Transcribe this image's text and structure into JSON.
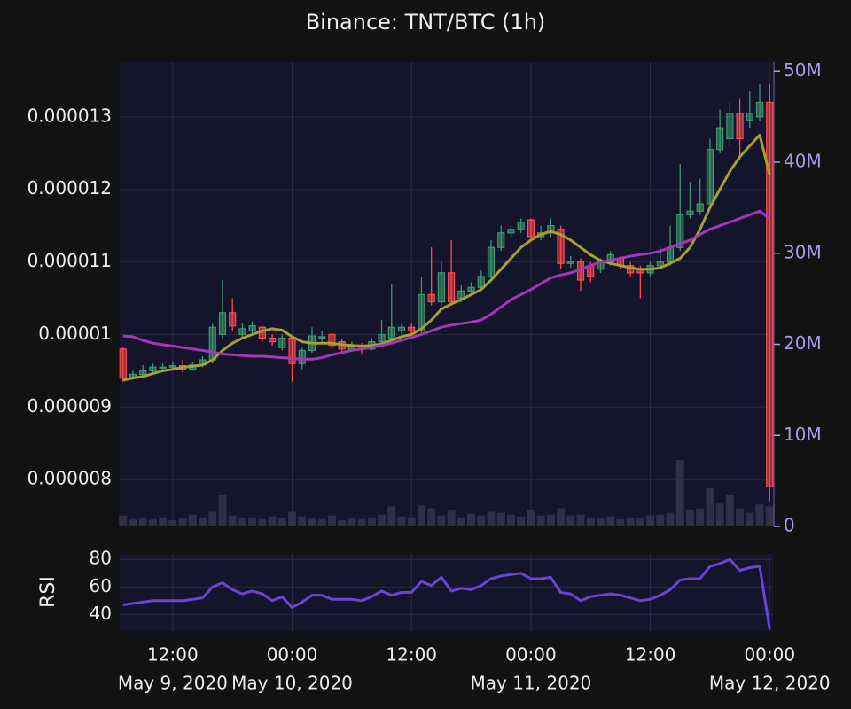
{
  "chart_data": [
    {
      "type": "candlestick",
      "title": "Binance: TNT/BTC (1h)",
      "x": [
        "2020-05-09 07:00",
        "2020-05-09 08:00",
        "2020-05-09 09:00",
        "2020-05-09 10:00",
        "2020-05-09 11:00",
        "2020-05-09 12:00",
        "2020-05-09 13:00",
        "2020-05-09 14:00",
        "2020-05-09 15:00",
        "2020-05-09 16:00",
        "2020-05-09 17:00",
        "2020-05-09 18:00",
        "2020-05-09 19:00",
        "2020-05-09 20:00",
        "2020-05-09 21:00",
        "2020-05-09 22:00",
        "2020-05-09 23:00",
        "2020-05-10 00:00",
        "2020-05-10 01:00",
        "2020-05-10 02:00",
        "2020-05-10 03:00",
        "2020-05-10 04:00",
        "2020-05-10 05:00",
        "2020-05-10 06:00",
        "2020-05-10 07:00",
        "2020-05-10 08:00",
        "2020-05-10 09:00",
        "2020-05-10 10:00",
        "2020-05-10 11:00",
        "2020-05-10 12:00",
        "2020-05-10 13:00",
        "2020-05-10 14:00",
        "2020-05-10 15:00",
        "2020-05-10 16:00",
        "2020-05-10 17:00",
        "2020-05-10 18:00",
        "2020-05-10 19:00",
        "2020-05-10 20:00",
        "2020-05-10 21:00",
        "2020-05-10 22:00",
        "2020-05-10 23:00",
        "2020-05-11 00:00",
        "2020-05-11 01:00",
        "2020-05-11 02:00",
        "2020-05-11 03:00",
        "2020-05-11 04:00",
        "2020-05-11 05:00",
        "2020-05-11 06:00",
        "2020-05-11 07:00",
        "2020-05-11 08:00",
        "2020-05-11 09:00",
        "2020-05-11 10:00",
        "2020-05-11 11:00",
        "2020-05-11 12:00",
        "2020-05-11 13:00",
        "2020-05-11 14:00",
        "2020-05-11 15:00",
        "2020-05-11 16:00",
        "2020-05-11 17:00",
        "2020-05-11 18:00",
        "2020-05-11 19:00",
        "2020-05-11 20:00",
        "2020-05-11 21:00",
        "2020-05-11 22:00",
        "2020-05-11 23:00",
        "2020-05-12 00:00"
      ],
      "open": [
        9.8e-06,
        9.4e-06,
        9.45e-06,
        9.5e-06,
        9.55e-06,
        9.55e-06,
        9.57e-06,
        9.52e-06,
        9.58e-06,
        9.65e-06,
        1e-05,
        1.03e-05,
        1e-05,
        1.005e-05,
        1.01e-05,
        9.95e-06,
        9.82e-06,
        9.95e-06,
        9.6e-06,
        9.78e-06,
        9.95e-06,
        1e-05,
        9.9e-06,
        9.8e-06,
        9.85e-06,
        9.8e-06,
        9.9e-06,
        9.95e-06,
        1.005e-05,
        1.01e-05,
        1.005e-05,
        1.055e-05,
        1.045e-05,
        1.085e-05,
        1.05e-05,
        1.06e-05,
        1.065e-05,
        1.08e-05,
        1.12e-05,
        1.14e-05,
        1.145e-05,
        1.158e-05,
        1.135e-05,
        1.14e-05,
        1.145e-05,
        1.098e-05,
        1.1e-05,
        1.095e-05,
        1.09e-05,
        1.1e-05,
        1.105e-05,
        1.095e-05,
        1.09e-05,
        1.085e-05,
        1.095e-05,
        1.1e-05,
        1.12e-05,
        1.165e-05,
        1.17e-05,
        1.18e-05,
        1.255e-05,
        1.27e-05,
        1.305e-05,
        1.295e-05,
        1.3e-05,
        1.32e-05
      ],
      "high": [
        9.82e-06,
        9.5e-06,
        9.58e-06,
        9.6e-06,
        9.6e-06,
        9.62e-06,
        9.65e-06,
        9.62e-06,
        9.7e-06,
        1.015e-05,
        1.075e-05,
        1.05e-05,
        1.015e-05,
        1.018e-05,
        1.012e-05,
        1e-05,
        1e-05,
        9.98e-06,
        9.82e-06,
        1.01e-05,
        1.005e-05,
        1.002e-05,
        9.93e-06,
        9.9e-06,
        9.88e-06,
        9.95e-06,
        1.02e-05,
        1.07e-05,
        1.015e-05,
        1.015e-05,
        1.08e-05,
        1.12e-05,
        1.1e-05,
        1.13e-05,
        1.068e-05,
        1.072e-05,
        1.088e-05,
        1.13e-05,
        1.15e-05,
        1.15e-05,
        1.16e-05,
        1.16e-05,
        1.15e-05,
        1.16e-05,
        1.15e-05,
        1.108e-05,
        1.105e-05,
        1.1e-05,
        1.105e-05,
        1.115e-05,
        1.108e-05,
        1.1e-05,
        1.095e-05,
        1.1e-05,
        1.12e-05,
        1.15e-05,
        1.235e-05,
        1.21e-05,
        1.215e-05,
        1.27e-05,
        1.31e-05,
        1.32e-05,
        1.325e-05,
        1.335e-05,
        1.345e-05,
        1.345e-05
      ],
      "low": [
        9.35e-06,
        9.38e-06,
        9.42e-06,
        9.47e-06,
        9.5e-06,
        9.5e-06,
        9.48e-06,
        9.5e-06,
        9.55e-06,
        9.6e-06,
        9.95e-06,
        1.005e-05,
        9.95e-06,
        1e-05,
        9.9e-06,
        9.85e-06,
        9.78e-06,
        9.35e-06,
        9.52e-06,
        9.75e-06,
        9.9e-06,
        9.8e-06,
        9.76e-06,
        9.77e-06,
        9.72e-06,
        9.78e-06,
        9.88e-06,
        9.92e-06,
        1e-05,
        1e-05,
        1.002e-05,
        1.04e-05,
        1.04e-05,
        1.04e-05,
        1.045e-05,
        1.055e-05,
        1.06e-05,
        1.075e-05,
        1.115e-05,
        1.135e-05,
        1.14e-05,
        1.13e-05,
        1.13e-05,
        1.135e-05,
        1.09e-05,
        1.092e-05,
        1.06e-05,
        1.072e-05,
        1.085e-05,
        1.095e-05,
        1.09e-05,
        1.08e-05,
        1.05e-05,
        1.08e-05,
        1.09e-05,
        1.095e-05,
        1.115e-05,
        1.16e-05,
        1.165e-05,
        1.175e-05,
        1.25e-05,
        1.26e-05,
        1.24e-05,
        1.285e-05,
        1.295e-05,
        7.7e-06
      ],
      "close": [
        9.4e-06,
        9.45e-06,
        9.5e-06,
        9.55e-06,
        9.55e-06,
        9.57e-06,
        9.52e-06,
        9.58e-06,
        9.65e-06,
        1.01e-05,
        1.03e-05,
        1.012e-05,
        1.008e-05,
        1.012e-05,
        9.95e-06,
        9.9e-06,
        9.95e-06,
        9.6e-06,
        9.78e-06,
        9.98e-06,
        9.97e-06,
        9.85e-06,
        9.8e-06,
        9.85e-06,
        9.8e-06,
        9.9e-06,
        1e-05,
        1.01e-05,
        1.01e-05,
        1.005e-05,
        1.055e-05,
        1.045e-05,
        1.085e-05,
        1.045e-05,
        1.06e-05,
        1.065e-05,
        1.08e-05,
        1.12e-05,
        1.14e-05,
        1.145e-05,
        1.155e-05,
        1.135e-05,
        1.14e-05,
        1.15e-05,
        1.098e-05,
        1.1e-05,
        1.075e-05,
        1.08e-05,
        1.1e-05,
        1.11e-05,
        1.095e-05,
        1.085e-05,
        1.085e-05,
        1.095e-05,
        1.1e-05,
        1.12e-05,
        1.165e-05,
        1.17e-05,
        1.18e-05,
        1.255e-05,
        1.285e-05,
        1.305e-05,
        1.27e-05,
        1.305e-05,
        1.32e-05,
        7.9e-06
      ],
      "increasing_color": "#3d9970",
      "decreasing_color": "#ff4b55",
      "overlays": [
        {
          "color": "#a8a02e",
          "values": [
            9.37e-06,
            9.4e-06,
            9.42e-06,
            9.46e-06,
            9.5e-06,
            9.52e-06,
            9.55e-06,
            9.56e-06,
            9.58e-06,
            9.65e-06,
            9.78e-06,
            9.88e-06,
            9.95e-06,
            1e-05,
            1.005e-05,
            1.008e-05,
            1.006e-05,
            9.97e-06,
            9.9e-06,
            9.88e-06,
            9.88e-06,
            9.88e-06,
            9.86e-06,
            9.85e-06,
            9.84e-06,
            9.85e-06,
            9.87e-06,
            9.92e-06,
            9.97e-06,
            1e-05,
            1.008e-05,
            1.02e-05,
            1.035e-05,
            1.042e-05,
            1.048e-05,
            1.055e-05,
            1.062e-05,
            1.075e-05,
            1.09e-05,
            1.105e-05,
            1.12e-05,
            1.13e-05,
            1.138e-05,
            1.142e-05,
            1.138e-05,
            1.13e-05,
            1.12e-05,
            1.11e-05,
            1.102e-05,
            1.098e-05,
            1.095e-05,
            1.092e-05,
            1.09e-05,
            1.09e-05,
            1.092e-05,
            1.098e-05,
            1.105e-05,
            1.12e-05,
            1.145e-05,
            1.175e-05,
            1.2e-05,
            1.225e-05,
            1.245e-05,
            1.26e-05,
            1.275e-05,
            1.22e-05
          ]
        },
        {
          "color": "#a536b8",
          "values": [
            9.98e-06,
            9.97e-06,
            9.92e-06,
            9.88e-06,
            9.86e-06,
            9.84e-06,
            9.82e-06,
            9.8e-06,
            9.78e-06,
            9.76e-06,
            9.73e-06,
            9.72e-06,
            9.71e-06,
            9.7e-06,
            9.7e-06,
            9.69e-06,
            9.68e-06,
            9.67e-06,
            9.66e-06,
            9.66e-06,
            9.68e-06,
            9.72e-06,
            9.75e-06,
            9.78e-06,
            9.8e-06,
            9.82e-06,
            9.85e-06,
            9.88e-06,
            9.92e-06,
            9.96e-06,
            1e-05,
            1.005e-05,
            1.01e-05,
            1.013e-05,
            1.015e-05,
            1.017e-05,
            1.02e-05,
            1.028e-05,
            1.038e-05,
            1.048e-05,
            1.055e-05,
            1.062e-05,
            1.07e-05,
            1.078e-05,
            1.082e-05,
            1.085e-05,
            1.09e-05,
            1.095e-05,
            1.1e-05,
            1.102e-05,
            1.105e-05,
            1.108e-05,
            1.11e-05,
            1.112e-05,
            1.115e-05,
            1.12e-05,
            1.125e-05,
            1.13e-05,
            1.138e-05,
            1.145e-05,
            1.15e-05,
            1.155e-05,
            1.16e-05,
            1.165e-05,
            1.17e-05,
            1.16e-05
          ]
        }
      ],
      "volume": {
        "color": "#3a3a55",
        "axis": "y2",
        "values": [
          1200000,
          800000,
          900000,
          800000,
          1000000,
          700000,
          900000,
          1300000,
          1000000,
          1600000,
          3500000,
          1200000,
          900000,
          1000000,
          800000,
          1100000,
          900000,
          1600000,
          1100000,
          900000,
          800000,
          1200000,
          700000,
          900000,
          800000,
          1000000,
          1300000,
          2200000,
          1100000,
          1000000,
          2300000,
          2000000,
          1200000,
          1800000,
          1000000,
          1400000,
          1200000,
          1600000,
          1500000,
          1300000,
          1100000,
          1800000,
          1200000,
          1300000,
          2000000,
          1200000,
          1300000,
          1000000,
          900000,
          1100000,
          800000,
          1000000,
          900000,
          1200000,
          1300000,
          1500000,
          7300000,
          1800000,
          2000000,
          4200000,
          2500000,
          3500000,
          2000000,
          1500000,
          2400000,
          2200000
        ]
      },
      "xlim": [
        "2020-05-09 06:40",
        "2020-05-12 00:20"
      ],
      "ylim": [
        7.354e-06,
        1.3756e-05
      ],
      "yticks": [
        8e-06,
        9e-06,
        1e-05,
        1.1e-05,
        1.2e-05,
        1.3e-05
      ],
      "y2lim": [
        0,
        51000000
      ],
      "y2ticks": [
        {
          "value": 0,
          "label": "0"
        },
        {
          "value": 10000000,
          "label": "10M"
        },
        {
          "value": 20000000,
          "label": "20M"
        },
        {
          "value": 30000000,
          "label": "30M"
        },
        {
          "value": 40000000,
          "label": "40M"
        },
        {
          "value": 50000000,
          "label": "50M"
        }
      ],
      "grid": true
    },
    {
      "type": "line",
      "ylabel": "RSI",
      "color": "#6a44d4",
      "values": [
        47,
        48,
        49,
        50,
        50,
        50,
        50,
        51,
        52,
        60,
        63,
        58,
        55,
        57,
        55,
        50,
        53,
        45,
        49,
        54,
        54,
        51,
        51,
        51,
        50,
        53,
        57,
        54,
        56,
        56,
        64,
        61,
        67,
        57,
        59,
        58,
        61,
        66,
        68,
        69,
        70,
        66,
        66,
        67,
        56,
        55,
        50,
        53,
        54,
        55,
        54,
        52,
        50,
        51,
        54,
        58,
        65,
        66,
        66,
        75,
        77,
        80,
        72,
        74,
        75,
        29
      ],
      "ylim": [
        28,
        84
      ],
      "yticks": [
        40,
        60,
        80
      ],
      "xticks": [
        {
          "value": "2020-05-09 12:00",
          "label": "12:00",
          "date": "May 9, 2020"
        },
        {
          "value": "2020-05-10 00:00",
          "label": "00:00",
          "date": "May 10, 2020"
        },
        {
          "value": "2020-05-10 12:00",
          "label": "12:00"
        },
        {
          "value": "2020-05-11 00:00",
          "label": "00:00",
          "date": "May 11, 2020"
        },
        {
          "value": "2020-05-11 12:00",
          "label": "12:00"
        },
        {
          "value": "2020-05-12 00:00",
          "label": "00:00",
          "date": "May 12, 2020"
        }
      ],
      "grid": true
    }
  ]
}
